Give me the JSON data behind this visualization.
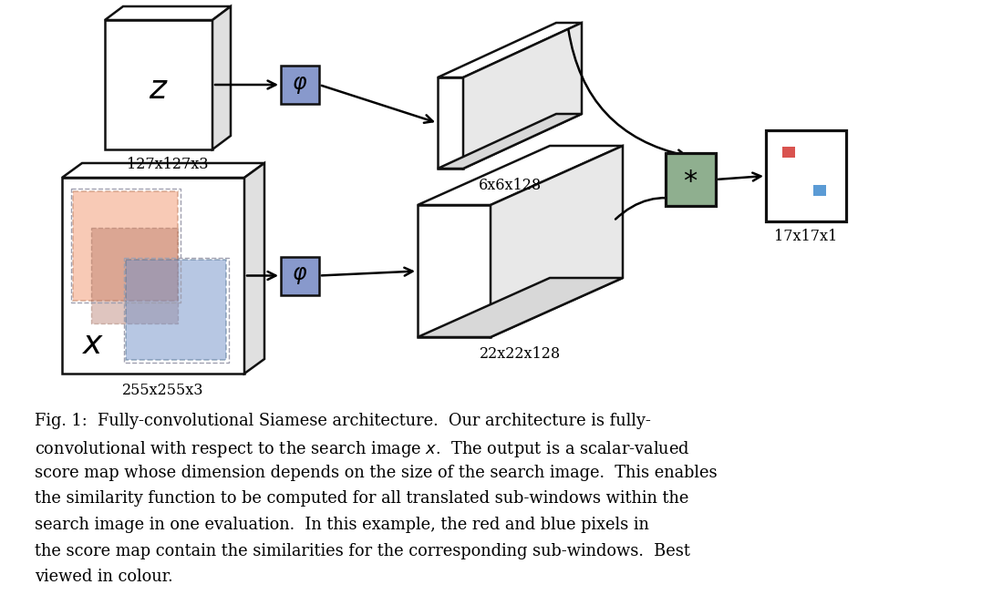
{
  "bg_color": "#ffffff",
  "caption_lines": [
    "Fig. 1:  Fully-convolutional Siamese architecture.  Our architecture is fully-",
    "convolutional with respect to the search image $x$.  The output is a scalar-valued",
    "score map whose dimension depends on the size of the search image.  This enables",
    "the similarity function to be computed for all translated sub-windows within the",
    "search image in one evaluation.  In this example, the red and blue pixels in",
    "the score map contain the similarities for the corresponding sub-windows.  Best",
    "viewed in colour."
  ],
  "label_127": "127x127x3",
  "label_255": "255x255x3",
  "label_6": "6x6x128",
  "label_22": "22x22x128",
  "label_17": "17x17x1",
  "phi_color": "#8899cc",
  "star_color": "#8faf8f",
  "red_pixel": "#d9534f",
  "blue_pixel": "#5b9bd5",
  "edge_color": "#111111"
}
